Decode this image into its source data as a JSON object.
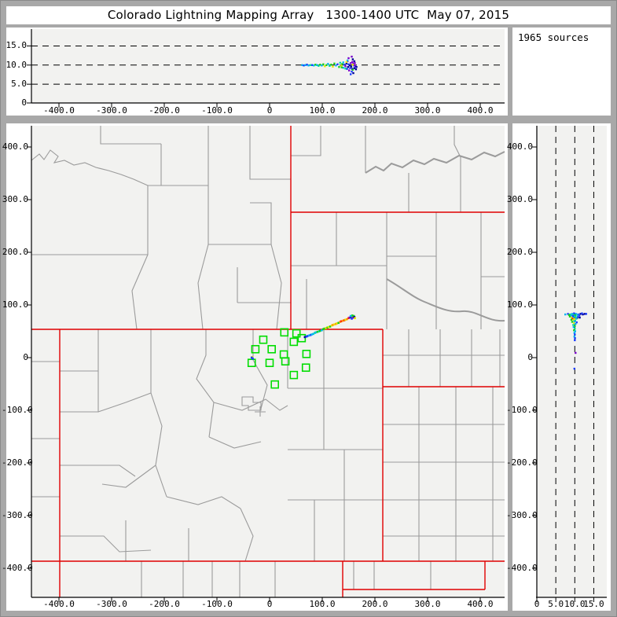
{
  "title": "Colorado Lightning Mapping Array   1300-1400 UTC  May 07, 2015",
  "sources_label": "1965 sources",
  "colors": {
    "frame": "#a8a8a8",
    "panel_bg": "#ffffff",
    "plot_bg": "#f2f2f0",
    "axis": "#000000",
    "grid_dash": "#000000",
    "county_line": "#9b9b9b",
    "state_line": "#e00000",
    "station": "#00dd00",
    "palette": {
      "n": "#000099",
      "b": "#1a3cff",
      "c": "#00b4f0",
      "t": "#00dc9b",
      "g": "#17cf17",
      "y": "#e6e600",
      "o": "#ff9500",
      "r": "#ff2a00",
      "p": "#7a00cc"
    }
  },
  "chart_data": {
    "type": "scatter",
    "title": "Colorado Lightning Mapping Array   1300-1400 UTC  May 07, 2015",
    "source_count": 1965,
    "units": {
      "xy": "km",
      "alt": "km"
    },
    "panels": {
      "alt_ew": {
        "xlabel_range": [
          -450,
          450
        ],
        "alt_range": [
          0,
          19
        ],
        "x_ticks": [
          [
            -400,
            "-400.0"
          ],
          [
            -300,
            "-300.0"
          ],
          [
            -200,
            "-200.0"
          ],
          [
            -100,
            "-100.0"
          ],
          [
            0,
            "0"
          ],
          [
            100,
            "100.0"
          ],
          [
            200,
            "200.0"
          ],
          [
            300,
            "300.0"
          ],
          [
            400,
            "400.0"
          ]
        ],
        "alt_ticks": [
          [
            0,
            "0"
          ],
          [
            5,
            "5.0"
          ],
          [
            10,
            "10.0"
          ],
          [
            15,
            "15.0"
          ]
        ],
        "dash_alts": [
          5,
          10,
          15
        ],
        "points": [
          [
            62,
            10.0,
            "c"
          ],
          [
            65,
            9.9,
            "b"
          ],
          [
            68,
            10.0,
            "c"
          ],
          [
            71,
            10.1,
            "b"
          ],
          [
            74,
            9.9,
            "c"
          ],
          [
            78,
            10.0,
            "t"
          ],
          [
            81,
            10.0,
            "b"
          ],
          [
            84,
            9.9,
            "c"
          ],
          [
            87,
            10.1,
            "g"
          ],
          [
            90,
            10.0,
            "c"
          ],
          [
            93,
            9.8,
            "t"
          ],
          [
            96,
            10.1,
            "g"
          ],
          [
            99,
            9.9,
            "c"
          ],
          [
            102,
            10.2,
            "g"
          ],
          [
            105,
            9.7,
            "y"
          ],
          [
            108,
            10.0,
            "g"
          ],
          [
            111,
            10.3,
            "c"
          ],
          [
            114,
            9.8,
            "t"
          ],
          [
            117,
            10.1,
            "g"
          ],
          [
            120,
            9.6,
            "y"
          ],
          [
            123,
            10.4,
            "g"
          ],
          [
            126,
            9.9,
            "c"
          ],
          [
            129,
            10.2,
            "b"
          ],
          [
            132,
            9.5,
            "g"
          ],
          [
            134,
            10.6,
            "t"
          ],
          [
            136,
            9.8,
            "y"
          ],
          [
            138,
            10.3,
            "g"
          ],
          [
            140,
            9.3,
            "c"
          ],
          [
            142,
            10.1,
            "b"
          ],
          [
            144,
            9.7,
            "p"
          ],
          [
            146,
            10.4,
            "n"
          ],
          [
            147,
            9.0,
            "b"
          ],
          [
            148,
            11.0,
            "p"
          ],
          [
            149,
            9.5,
            "n"
          ],
          [
            150,
            10.2,
            "b"
          ],
          [
            151,
            8.6,
            "p"
          ],
          [
            152,
            9.9,
            "n"
          ],
          [
            153,
            9.2,
            "b"
          ],
          [
            154,
            10.5,
            "p"
          ],
          [
            155,
            9.6,
            "n"
          ],
          [
            156,
            8.3,
            "b"
          ],
          [
            157,
            9.0,
            "n"
          ],
          [
            158,
            8.8,
            "g"
          ],
          [
            148,
            11.2,
            "c"
          ],
          [
            150,
            11.8,
            "p"
          ],
          [
            154,
            7.6,
            "b"
          ],
          [
            156,
            12.2,
            "p"
          ],
          [
            159,
            7.9,
            "n"
          ],
          [
            160,
            9.9,
            "b"
          ],
          [
            161,
            9.2,
            "n"
          ],
          [
            162,
            10.5,
            "p"
          ],
          [
            163,
            9.6,
            "b"
          ],
          [
            164,
            8.9,
            "n"
          ],
          [
            146,
            10.8,
            "y"
          ],
          [
            144,
            9.1,
            "t"
          ],
          [
            140,
            10.7,
            "c"
          ],
          [
            137,
            9.4,
            "g"
          ],
          [
            157,
            10.8,
            "p"
          ],
          [
            158,
            11.5,
            "n"
          ],
          [
            159,
            10.4,
            "p"
          ],
          [
            161,
            11.0,
            "n"
          ],
          [
            158,
            10.1,
            "y"
          ],
          [
            162,
            9.9,
            "p"
          ],
          [
            165,
            9.5,
            "n"
          ]
        ]
      },
      "plan": {
        "x_range": [
          -450,
          450
        ],
        "y_range": [
          -455,
          440
        ],
        "x_ticks": [
          [
            -400,
            "-400.0"
          ],
          [
            -300,
            "-300.0"
          ],
          [
            -200,
            "-200.0"
          ],
          [
            -100,
            "-100.0"
          ],
          [
            0,
            "0"
          ],
          [
            100,
            "100.0"
          ],
          [
            200,
            "200.0"
          ],
          [
            300,
            "300.0"
          ],
          [
            400,
            "400.0"
          ]
        ],
        "y_ticks": [
          [
            400,
            "400.0"
          ],
          [
            300,
            "300.0"
          ],
          [
            200,
            "200.0"
          ],
          [
            100,
            "100.0"
          ],
          [
            0,
            "0"
          ],
          [
            -100,
            "-100.0"
          ],
          [
            -200,
            "-200.0"
          ],
          [
            -300,
            "-300.0"
          ],
          [
            -400,
            "-400.0"
          ]
        ],
        "points": [
          [
            67,
            39,
            "n"
          ],
          [
            70,
            40,
            "b"
          ],
          [
            72,
            41,
            "b"
          ],
          [
            75,
            42,
            "c"
          ],
          [
            78,
            43,
            "b"
          ],
          [
            80,
            44,
            "c"
          ],
          [
            83,
            45,
            "c"
          ],
          [
            86,
            47,
            "t"
          ],
          [
            88,
            48,
            "c"
          ],
          [
            91,
            49,
            "g"
          ],
          [
            94,
            50,
            "t"
          ],
          [
            96,
            51,
            "g"
          ],
          [
            99,
            52,
            "c"
          ],
          [
            102,
            54,
            "g"
          ],
          [
            104,
            55,
            "g"
          ],
          [
            107,
            56,
            "y"
          ],
          [
            110,
            57,
            "g"
          ],
          [
            112,
            58,
            "y"
          ],
          [
            115,
            59,
            "g"
          ],
          [
            118,
            61,
            "y"
          ],
          [
            120,
            62,
            "o"
          ],
          [
            123,
            63,
            "y"
          ],
          [
            126,
            64,
            "o"
          ],
          [
            128,
            65,
            "y"
          ],
          [
            131,
            66,
            "g"
          ],
          [
            134,
            68,
            "o"
          ],
          [
            136,
            69,
            "r"
          ],
          [
            139,
            70,
            "o"
          ],
          [
            142,
            71,
            "r"
          ],
          [
            144,
            72,
            "y"
          ],
          [
            147,
            73,
            "o"
          ],
          [
            150,
            75,
            "r"
          ],
          [
            152,
            76,
            "p"
          ],
          [
            155,
            77,
            "n"
          ],
          [
            158,
            78,
            "y"
          ],
          [
            160,
            79,
            "g"
          ],
          [
            156,
            74,
            "b"
          ],
          [
            159,
            76,
            "p"
          ],
          [
            161,
            77,
            "n"
          ],
          [
            157,
            80,
            "g"
          ],
          [
            154,
            79,
            "c"
          ],
          [
            162,
            75,
            "y"
          ],
          [
            -33,
            1,
            "y"
          ],
          [
            -34,
            0,
            "b"
          ],
          [
            -32,
            -2,
            "b"
          ]
        ],
        "stations": [
          [
            28,
            48
          ],
          [
            51,
            46
          ],
          [
            -12,
            34
          ],
          [
            61,
            37
          ],
          [
            46,
            30
          ],
          [
            -27,
            16
          ],
          [
            4,
            16
          ],
          [
            27,
            6
          ],
          [
            70,
            7
          ],
          [
            -34,
            -10
          ],
          [
            0,
            -10
          ],
          [
            30,
            -7
          ],
          [
            69,
            -19
          ],
          [
            46,
            -33
          ],
          [
            10,
            -51
          ]
        ]
      },
      "alt_ns": {
        "alt_range": [
          0,
          18
        ],
        "y_range": [
          -455,
          440
        ],
        "alt_ticks": [
          [
            0,
            "0"
          ],
          [
            5,
            "5.0"
          ],
          [
            10,
            "10.0"
          ],
          [
            15,
            "15.0"
          ]
        ],
        "y_ticks": [
          [
            400,
            "400.0"
          ],
          [
            300,
            "300.0"
          ],
          [
            200,
            "200.0"
          ],
          [
            100,
            "100.0"
          ],
          [
            0,
            "0"
          ],
          [
            -100,
            "-100.0"
          ],
          [
            -200,
            "-200.0"
          ],
          [
            -300,
            "-300.0"
          ],
          [
            -400,
            "-400.0"
          ]
        ],
        "dash_alts": [
          5,
          10,
          15
        ],
        "points": [
          [
            7.5,
            82,
            "c"
          ],
          [
            8.2,
            83,
            "b"
          ],
          [
            8.8,
            82,
            "t"
          ],
          [
            9.3,
            83,
            "c"
          ],
          [
            9.8,
            84,
            "b"
          ],
          [
            10.3,
            83,
            "c"
          ],
          [
            10.9,
            82,
            "b"
          ],
          [
            11.5,
            83,
            "n"
          ],
          [
            12.1,
            82,
            "n"
          ],
          [
            11.9,
            84,
            "b"
          ],
          [
            12.6,
            83,
            "n"
          ],
          [
            13.0,
            83,
            "b"
          ],
          [
            8.5,
            81,
            "g"
          ],
          [
            9.0,
            80,
            "c"
          ],
          [
            9.6,
            81,
            "t"
          ],
          [
            10.1,
            80,
            "g"
          ],
          [
            10.7,
            81,
            "c"
          ],
          [
            11.2,
            80,
            "b"
          ],
          [
            8.7,
            78,
            "g"
          ],
          [
            9.2,
            76,
            "y"
          ],
          [
            9.7,
            77,
            "c"
          ],
          [
            10.2,
            78,
            "t"
          ],
          [
            10.6,
            75,
            "g"
          ],
          [
            9.4,
            74,
            "r"
          ],
          [
            9.9,
            73,
            "y"
          ],
          [
            10.4,
            74,
            "c"
          ],
          [
            9.1,
            72,
            "g"
          ],
          [
            9.7,
            71,
            "y"
          ],
          [
            10.1,
            70,
            "t"
          ],
          [
            9.5,
            79,
            "b"
          ],
          [
            10.8,
            77,
            "b"
          ],
          [
            11.3,
            76,
            "n"
          ],
          [
            9.3,
            68,
            "g"
          ],
          [
            9.8,
            66,
            "y"
          ],
          [
            10.2,
            64,
            "c"
          ],
          [
            9.6,
            62,
            "t"
          ],
          [
            10.0,
            60,
            "g"
          ],
          [
            9.9,
            69,
            "c"
          ],
          [
            10.5,
            67,
            "b"
          ],
          [
            9.7,
            58,
            "c"
          ],
          [
            10.0,
            55,
            "t"
          ],
          [
            9.8,
            52,
            "g"
          ],
          [
            10.1,
            50,
            "c"
          ],
          [
            9.9,
            47,
            "c"
          ],
          [
            10.0,
            44,
            "b"
          ],
          [
            9.9,
            40,
            "c"
          ],
          [
            10.05,
            37,
            "b"
          ],
          [
            10.0,
            33,
            "b"
          ],
          [
            10.2,
            9,
            "p"
          ],
          [
            9.9,
            -21,
            "b"
          ]
        ]
      }
    },
    "map_layers": {
      "state_paths": [
        "M0,259 H447",
        "M330,0 V259",
        "M330,110 H602",
        "M447,259 V554",
        "M447,332 H602",
        "M0,554 H602",
        "M36,259 V600",
        "M396,554 V600",
        "M396,590 H577",
        "M577,554 V590"
      ],
      "county_paths": [
        "M88,0 V23 H165",
        "M165,23 V76",
        "M0,44 L10,36 L16,43 L24,31 L34,39 L29,47 L42,44 L54,50 L68,47 L82,53 L98,57 L114,62 L130,68 L148,76",
        "M148,76 H225",
        "M225,0 V151",
        "M225,151 H305",
        "M305,151 V98 H278",
        "M278,0 V68 H330",
        "M148,76 V164 H0",
        "M148,164 L128,210 L134,259",
        "M225,151 L212,200 L218,259",
        "M262,225 H330 M262,225 V180",
        "M350,195 V259",
        "M305,151 L318,200 L312,259",
        "M368,0 V38 H330",
        "M425,0 V60",
        "M538,0 V24 L546,40",
        "M480,60 V110",
        "M546,40 V110",
        "M388,110 V178 H330",
        "M452,110 V259",
        "M452,178 H388",
        "M515,110 V166 H452",
        "M515,166 V259",
        "M572,110 V192 H602",
        "M572,192 V259",
        "M480,259 V332",
        "M520,259 V332",
        "M560,259 V332",
        "M596,259 V332",
        "M447,292 H602",
        "M493,332 V554",
        "M540,332 V554",
        "M587,332 V554",
        "M447,380 H602",
        "M447,428 H602",
        "M447,476 H602",
        "M447,522 H602",
        "M372,259 V334",
        "M326,334 H447",
        "M372,334 V412",
        "M326,412 H447",
        "M398,412 V554",
        "M326,476 H447",
        "M360,476 V554",
        "M326,259 V334",
        "M85,259 V312 H36",
        "M85,312 V364 H36",
        "M152,259 V340 L120,352 L85,364",
        "M222,259 V292 L210,322 L232,352 L226,396",
        "M152,340 L166,382 L158,432 L172,472",
        "M36,432 H112 L132,446",
        "M36,522 H92 L112,542 L152,540",
        "M172,472 L212,482 L242,472 L266,487",
        "M266,487 L282,522 L272,554",
        "M232,352 L268,362 L298,348 L316,362 L326,356",
        "M282,259 V298 L300,330 L292,360",
        "M268,345 H282 V352 H292 V362 H276 V356 H268 Z",
        "M284,364 L298,364 M291,357 V370",
        "M120,554 V502",
        "M200,554 V512",
        "M226,396 L258,410 L292,402",
        "M158,432 L120,460 L90,456",
        "M0,300 H36",
        "M0,398 H36",
        "M0,472 H36",
        "M140,554 V600",
        "M193,554 V600",
        "M230,554 V600",
        "M265,554 V600",
        "M310,554 V600",
        "M410,554 V590",
        "M436,554 V590",
        "M508,554 V590"
      ],
      "river_paths": [
        "M425,60 L438,52 L448,57 L458,48 L472,53 L486,44 L500,49 L512,42 L528,47 L544,38 L560,43 L576,34 L590,39 L602,33",
        "M452,195 C470,205 485,218 500,224 S530,238 548,236 S580,250 602,248"
      ]
    }
  }
}
